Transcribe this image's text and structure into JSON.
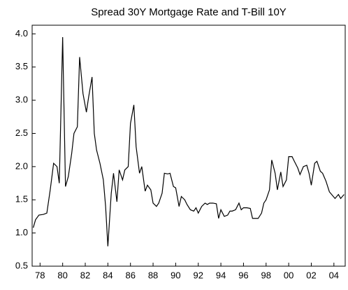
{
  "chart_data": {
    "type": "line",
    "title": "Spread 30Y Mortgage Rate and T-Bill 10Y",
    "x": [
      1977.4,
      1977.6,
      1977.9,
      1978.3,
      1978.6,
      1978.9,
      1979.2,
      1979.5,
      1979.7,
      1980.0,
      1980.25,
      1980.5,
      1980.8,
      1981.0,
      1981.3,
      1981.5,
      1981.8,
      1982.1,
      1982.3,
      1982.6,
      1982.8,
      1983.0,
      1983.3,
      1983.6,
      1983.8,
      1984.0,
      1984.3,
      1984.5,
      1984.8,
      1985.0,
      1985.3,
      1985.5,
      1985.8,
      1986.0,
      1986.3,
      1986.5,
      1986.8,
      1987.0,
      1987.3,
      1987.5,
      1987.8,
      1988.0,
      1988.3,
      1988.5,
      1988.8,
      1989.0,
      1989.3,
      1989.5,
      1989.8,
      1990.0,
      1990.3,
      1990.5,
      1990.8,
      1991.0,
      1991.3,
      1991.6,
      1991.8,
      1992.0,
      1992.3,
      1992.6,
      1992.8,
      1993.0,
      1993.3,
      1993.6,
      1993.8,
      1994.0,
      1994.3,
      1994.6,
      1994.8,
      1995.0,
      1995.3,
      1995.6,
      1995.8,
      1996.0,
      1996.3,
      1996.6,
      1996.8,
      1997.0,
      1997.3,
      1997.6,
      1997.8,
      1998.0,
      1998.3,
      1998.5,
      1998.8,
      1999.0,
      1999.3,
      1999.5,
      1999.8,
      2000.0,
      2000.3,
      2000.5,
      2000.8,
      2001.0,
      2001.3,
      2001.6,
      2001.8,
      2002.0,
      2002.3,
      2002.5,
      2002.8,
      2003.0,
      2003.3,
      2003.6,
      2003.8,
      2004.1,
      2004.4,
      2004.6,
      2004.9
    ],
    "values": [
      1.08,
      1.2,
      1.27,
      1.28,
      1.3,
      1.65,
      2.05,
      2.0,
      1.75,
      3.95,
      1.7,
      1.85,
      2.2,
      2.5,
      2.6,
      3.65,
      3.1,
      2.82,
      3.05,
      3.35,
      2.5,
      2.25,
      2.05,
      1.8,
      1.4,
      0.8,
      1.6,
      1.9,
      1.47,
      1.95,
      1.8,
      1.95,
      2.0,
      2.65,
      2.93,
      2.3,
      1.9,
      2.0,
      1.63,
      1.72,
      1.65,
      1.45,
      1.4,
      1.45,
      1.6,
      1.9,
      1.89,
      1.9,
      1.7,
      1.68,
      1.4,
      1.55,
      1.5,
      1.43,
      1.35,
      1.33,
      1.38,
      1.3,
      1.4,
      1.45,
      1.43,
      1.45,
      1.45,
      1.44,
      1.22,
      1.35,
      1.25,
      1.27,
      1.33,
      1.33,
      1.35,
      1.45,
      1.35,
      1.38,
      1.38,
      1.37,
      1.22,
      1.22,
      1.22,
      1.3,
      1.45,
      1.5,
      1.65,
      2.1,
      1.9,
      1.65,
      1.92,
      1.7,
      1.8,
      2.15,
      2.15,
      2.08,
      1.98,
      1.88,
      2.0,
      2.02,
      1.9,
      1.72,
      2.05,
      2.08,
      1.93,
      1.9,
      1.78,
      1.62,
      1.58,
      1.52,
      1.58,
      1.52,
      1.58
    ],
    "color": "#000000",
    "xlim": [
      1977.3,
      2005.0
    ],
    "xticks": [
      {
        "value": 1978,
        "label": "78"
      },
      {
        "value": 1980,
        "label": "80"
      },
      {
        "value": 1982,
        "label": "82"
      },
      {
        "value": 1984,
        "label": "84"
      },
      {
        "value": 1986,
        "label": "86"
      },
      {
        "value": 1988,
        "label": "88"
      },
      {
        "value": 1990,
        "label": "90"
      },
      {
        "value": 1992,
        "label": "92"
      },
      {
        "value": 1994,
        "label": "94"
      },
      {
        "value": 1996,
        "label": "96"
      },
      {
        "value": 1998,
        "label": "98"
      },
      {
        "value": 2000,
        "label": "00"
      },
      {
        "value": 2002,
        "label": "02"
      },
      {
        "value": 2004,
        "label": "04"
      }
    ],
    "ylim": [
      0.5,
      4.13
    ],
    "yticks": [
      0.5,
      {
        "value": 1,
        "label": "1.0"
      },
      1.5,
      {
        "value": 2,
        "label": "2.0"
      },
      2.5,
      {
        "value": 3,
        "label": "3.0"
      },
      3.5,
      {
        "value": 4,
        "label": "4.0"
      }
    ]
  }
}
